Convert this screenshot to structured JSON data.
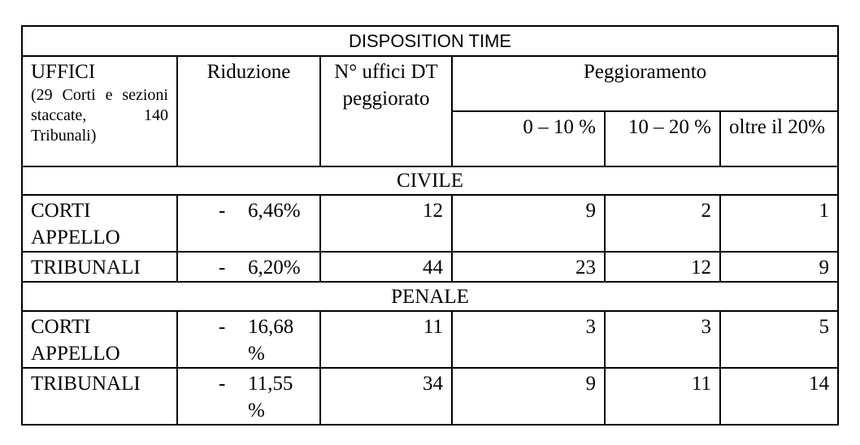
{
  "table": {
    "title": "DISPOSITION TIME",
    "header": {
      "uffici": "UFFICI",
      "uffici_note": "(29 Corti e sezioni staccate, 140 Tribunali)",
      "riduzione": "Riduzione",
      "uffici_dt": "N° uffici DT peggiorato",
      "peggioramento": "Peggioramento",
      "ranges": [
        "0 – 10 %",
        "10 – 20 %",
        "oltre il 20%"
      ]
    },
    "sections": [
      {
        "label": "CIVILE",
        "rows": [
          {
            "ufficio": "CORTI APPELLO",
            "riduzione": {
              "sign": "-",
              "value": "6,46%"
            },
            "values": [
              12,
              9,
              2,
              1
            ]
          },
          {
            "ufficio": "TRIBUNALI",
            "riduzione": {
              "sign": "-",
              "value": "6,20%"
            },
            "values": [
              44,
              23,
              12,
              9
            ]
          }
        ]
      },
      {
        "label": "PENALE",
        "rows": [
          {
            "ufficio": "CORTI APPELLO",
            "riduzione": {
              "sign": "-",
              "value": "16,68 %"
            },
            "values": [
              11,
              3,
              3,
              5
            ]
          },
          {
            "ufficio": "TRIBUNALI",
            "riduzione": {
              "sign": "-",
              "value": "11,55 %"
            },
            "values": [
              34,
              9,
              11,
              14
            ]
          }
        ]
      }
    ]
  }
}
